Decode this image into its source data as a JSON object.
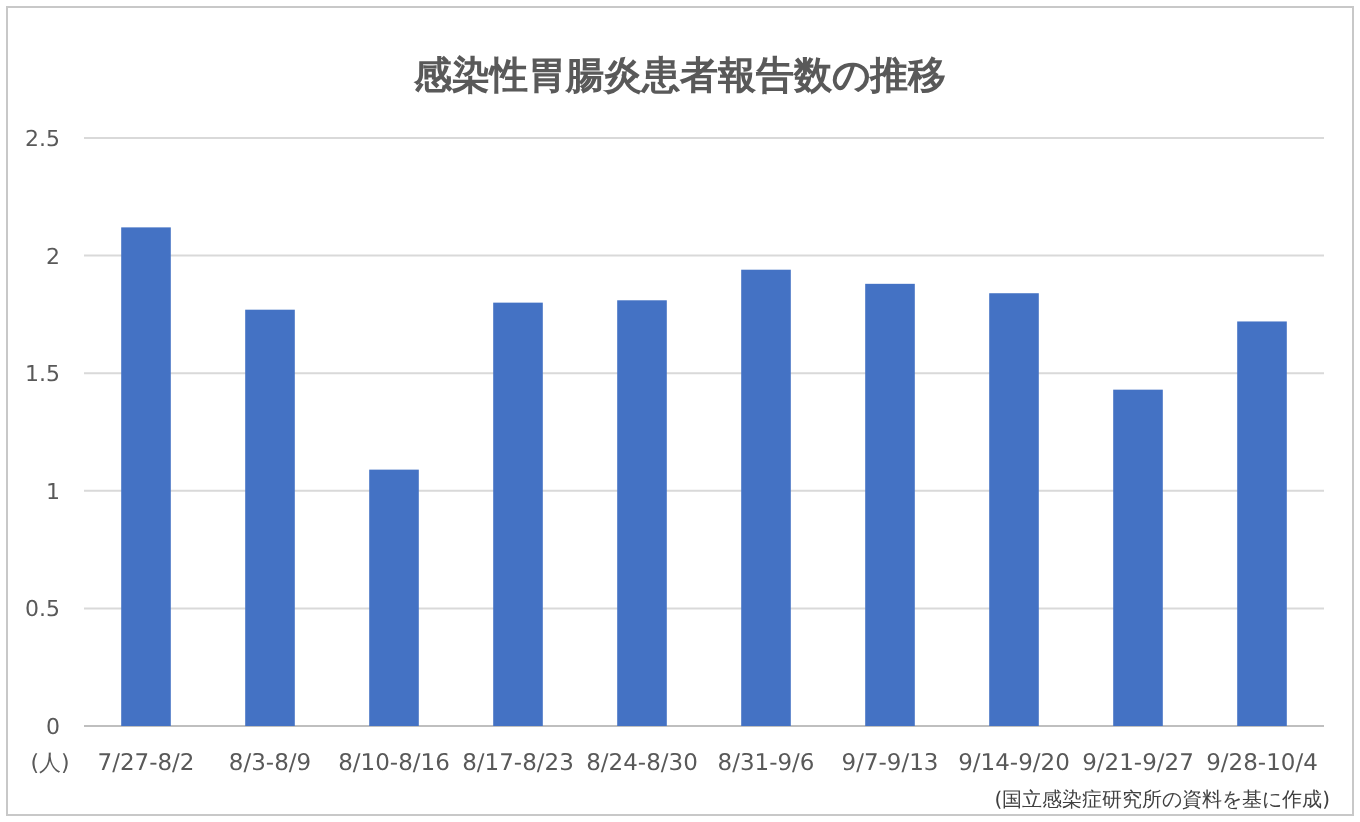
{
  "chart_data": {
    "type": "bar",
    "title": "感染性胃腸炎患者報告数の推移",
    "ylabel": "(人)",
    "categories": [
      "7/27-8/2",
      "8/3-8/9",
      "8/10-8/16",
      "8/17-8/23",
      "8/24-8/30",
      "8/31-9/6",
      "9/7-9/13",
      "9/14-9/20",
      "9/21-9/27",
      "9/28-10/4"
    ],
    "values": [
      2.12,
      1.77,
      1.09,
      1.8,
      1.81,
      1.94,
      1.88,
      1.84,
      1.43,
      1.72
    ],
    "color": "#4472c4",
    "ylim": [
      0,
      2.5
    ],
    "yticks": [
      0,
      0.5,
      1,
      1.5,
      2,
      2.5
    ],
    "grid": "y",
    "annotations": [
      "(国立感染症研究所の資料を基に作成)"
    ]
  }
}
